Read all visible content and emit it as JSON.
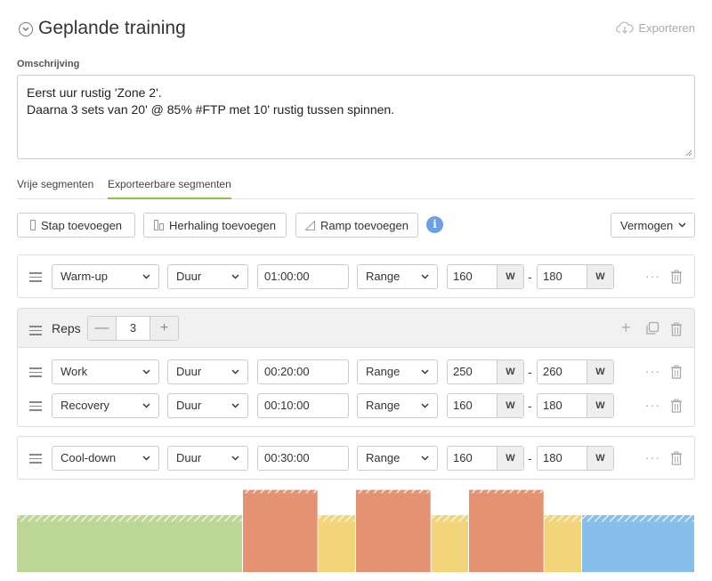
{
  "header": {
    "title": "Geplande training",
    "export_label": "Exporteren"
  },
  "description": {
    "label": "Omschrijving",
    "lines": [
      "Eerst uur rustig 'Zone 2'.",
      "Daarna 3 sets van 20' @ 85% #FTP met 10' rustig tussen spinnen."
    ]
  },
  "tabs": [
    {
      "label": "Vrije segmenten",
      "active": false
    },
    {
      "label": "Exporteerbare segmenten",
      "active": true
    }
  ],
  "toolbar": {
    "add_step": "Stap toevoegen",
    "add_repeat": "Herhaling toevoegen",
    "add_ramp": "Ramp toevoegen",
    "info": "i",
    "metric": "Vermogen"
  },
  "segments": {
    "warmup": {
      "name": "Warm-up",
      "duration_type": "Duur",
      "duration": "01:00:00",
      "target_type": "Range",
      "low": "160",
      "high": "180",
      "unit": "W"
    },
    "reps": {
      "label": "Reps",
      "count": "3",
      "minus": "—",
      "plus": "+",
      "work": {
        "name": "Work",
        "duration_type": "Duur",
        "duration": "00:20:00",
        "target_type": "Range",
        "low": "250",
        "high": "260",
        "unit": "W"
      },
      "recovery": {
        "name": "Recovery",
        "duration_type": "Duur",
        "duration": "00:10:00",
        "target_type": "Range",
        "low": "160",
        "high": "180",
        "unit": "W"
      }
    },
    "cooldown": {
      "name": "Cool-down",
      "duration_type": "Duur",
      "duration": "00:30:00",
      "target_type": "Range",
      "low": "160",
      "high": "180",
      "unit": "W"
    }
  },
  "chart_data": {
    "type": "bar",
    "segments": [
      {
        "name": "Warm-up",
        "minutes": 60,
        "low": 160,
        "high": 180,
        "color": "#bcd696"
      },
      {
        "name": "Work",
        "minutes": 20,
        "low": 250,
        "high": 260,
        "color": "#e39373"
      },
      {
        "name": "Recovery",
        "minutes": 10,
        "low": 160,
        "high": 180,
        "color": "#f2d47a"
      },
      {
        "name": "Work",
        "minutes": 20,
        "low": 250,
        "high": 260,
        "color": "#e39373"
      },
      {
        "name": "Recovery",
        "minutes": 10,
        "low": 160,
        "high": 180,
        "color": "#f2d47a"
      },
      {
        "name": "Work",
        "minutes": 20,
        "low": 250,
        "high": 260,
        "color": "#e39373"
      },
      {
        "name": "Recovery",
        "minutes": 10,
        "low": 160,
        "high": 180,
        "color": "#f2d47a"
      },
      {
        "name": "Cool-down",
        "minutes": 30,
        "low": 160,
        "high": 180,
        "color": "#86bfea"
      }
    ],
    "ylim": [
      0,
      270
    ]
  }
}
